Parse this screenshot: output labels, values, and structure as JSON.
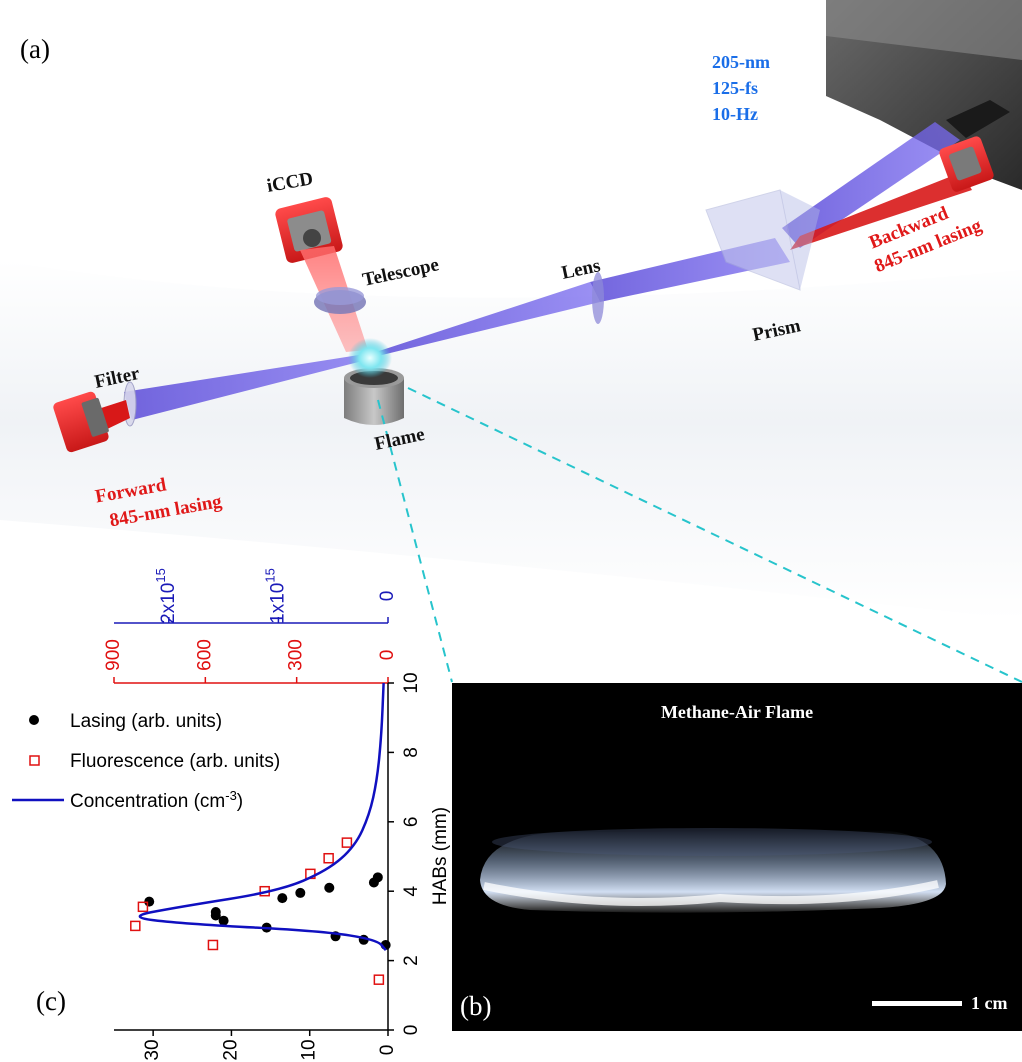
{
  "panel_labels": {
    "a": "(a)",
    "b": "(b)",
    "c": "(c)"
  },
  "setup": {
    "laser_specs": [
      "205-nm",
      "125-fs",
      "10-Hz"
    ],
    "components": {
      "iccd": "iCCD",
      "telescope": "Telescope",
      "lens": "Lens",
      "prism": "Prism",
      "filter": "Filter",
      "flame": "Flame"
    },
    "backward_label": [
      "Backward",
      "845-nm lasing"
    ],
    "forward_label": [
      "Forward",
      "845-nm lasing"
    ]
  },
  "flame_image": {
    "title": "Methane-Air Flame",
    "scale_label": "1 cm"
  },
  "colors": {
    "uv_beam": "#6a5ae0",
    "lasing_red": "#d81818",
    "conc_blue": "#1010c0",
    "axis_red": "#e01010",
    "axis_blue": "#1a1ab8",
    "cyan_dashed": "#27c4cc"
  },
  "chart_data": {
    "type": "scatter",
    "orientation": "vertical profile (HAB on vertical axis)",
    "ylabel": "HABs (mm)",
    "ylim": [
      0,
      10
    ],
    "yticks": [
      "0",
      "2",
      "4",
      "6",
      "8",
      "10"
    ],
    "axes": {
      "lasing": {
        "xlim": [
          0,
          35
        ],
        "ticks": [
          "0",
          "10",
          "20",
          "30"
        ],
        "reversed": true
      },
      "fluorescence": {
        "xlim": [
          0,
          900
        ],
        "ticks": [
          "0",
          "300",
          "600",
          "900"
        ],
        "reversed": true
      },
      "concentration": {
        "xlim": [
          0,
          2500000000000000.0
        ],
        "ticks": [
          "0",
          "1x10",
          "2x10"
        ],
        "tick_exp": "15",
        "reversed": true
      }
    },
    "legend": {
      "lasing": "Lasing (arb. units)",
      "fluorescence": "Fluorescence (arb. units)",
      "concentration": "Concentration (cm",
      "concentration_exp": "-3",
      "concentration_close": ")"
    },
    "series": [
      {
        "name": "Lasing (arb. units)",
        "axis": "lasing",
        "points": [
          [
            0.3,
            2.45
          ],
          [
            3.1,
            2.6
          ],
          [
            6.7,
            2.7
          ],
          [
            15.5,
            2.95
          ],
          [
            21,
            3.15
          ],
          [
            22,
            3.3
          ],
          [
            22,
            3.4
          ],
          [
            30.5,
            3.7
          ],
          [
            13.5,
            3.8
          ],
          [
            11.2,
            3.95
          ],
          [
            7.5,
            4.1
          ],
          [
            1.8,
            4.25
          ],
          [
            1.3,
            4.4
          ]
        ]
      },
      {
        "name": "Fluorescence (arb. units)",
        "axis": "fluorescence",
        "points": [
          [
            30,
            1.45
          ],
          [
            575,
            2.45
          ],
          [
            830,
            3.0
          ],
          [
            805,
            3.55
          ],
          [
            405,
            4.0
          ],
          [
            255,
            4.5
          ],
          [
            195,
            4.95
          ],
          [
            135,
            5.4
          ]
        ]
      },
      {
        "name": "Concentration (cm-3)",
        "axis": "concentration",
        "points": [
          [
            20000000000000.0,
            2.3
          ],
          [
            100000000000000.0,
            2.6
          ],
          [
            600000000000000.0,
            2.85
          ],
          [
            1800000000000000.0,
            3.05
          ],
          [
            2400000000000000.0,
            3.25
          ],
          [
            1900000000000000.0,
            3.55
          ],
          [
            1000000000000000.0,
            4.0
          ],
          [
            550000000000000.0,
            4.6
          ],
          [
            300000000000000.0,
            5.3
          ],
          [
            170000000000000.0,
            6.2
          ],
          [
            100000000000000.0,
            7.2
          ],
          [
            60000000000000.0,
            8.5
          ],
          [
            40000000000000.0,
            10.0
          ]
        ]
      }
    ]
  }
}
